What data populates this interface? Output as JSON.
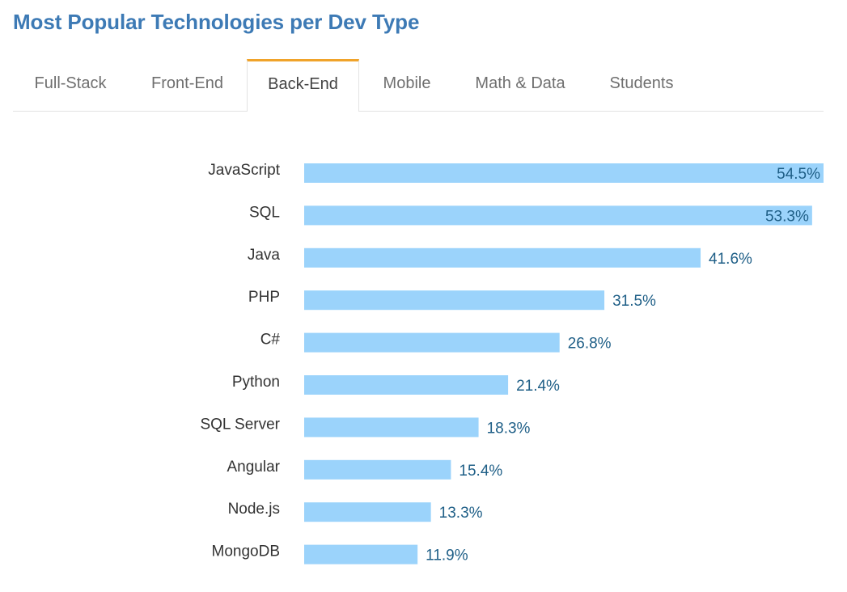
{
  "header": {
    "title": "Most Popular Technologies per Dev Type"
  },
  "tabs": [
    {
      "label": "Full-Stack",
      "active": false
    },
    {
      "label": "Front-End",
      "active": false
    },
    {
      "label": "Back-End",
      "active": true
    },
    {
      "label": "Mobile",
      "active": false
    },
    {
      "label": "Math & Data",
      "active": false
    },
    {
      "label": "Students",
      "active": false
    }
  ],
  "colors": {
    "title": "#3d7ab5",
    "active_tab_accent": "#f0a32a",
    "bar": "#9bd3fb",
    "value_label": "#1f5f87"
  },
  "chart_data": {
    "type": "bar",
    "orientation": "horizontal",
    "title": "Back-End",
    "categories": [
      "JavaScript",
      "SQL",
      "Java",
      "PHP",
      "C#",
      "Python",
      "SQL Server",
      "Angular",
      "Node.js",
      "MongoDB"
    ],
    "values": [
      54.5,
      53.3,
      41.6,
      31.5,
      26.8,
      21.4,
      18.3,
      15.4,
      13.3,
      11.9
    ],
    "value_labels": [
      "54.5%",
      "53.3%",
      "41.6%",
      "31.5%",
      "26.8%",
      "21.4%",
      "18.3%",
      "15.4%",
      "13.3%",
      "11.9%"
    ],
    "unit": "%",
    "xlim": [
      0,
      54.5
    ],
    "grid": false,
    "legend": "none"
  }
}
